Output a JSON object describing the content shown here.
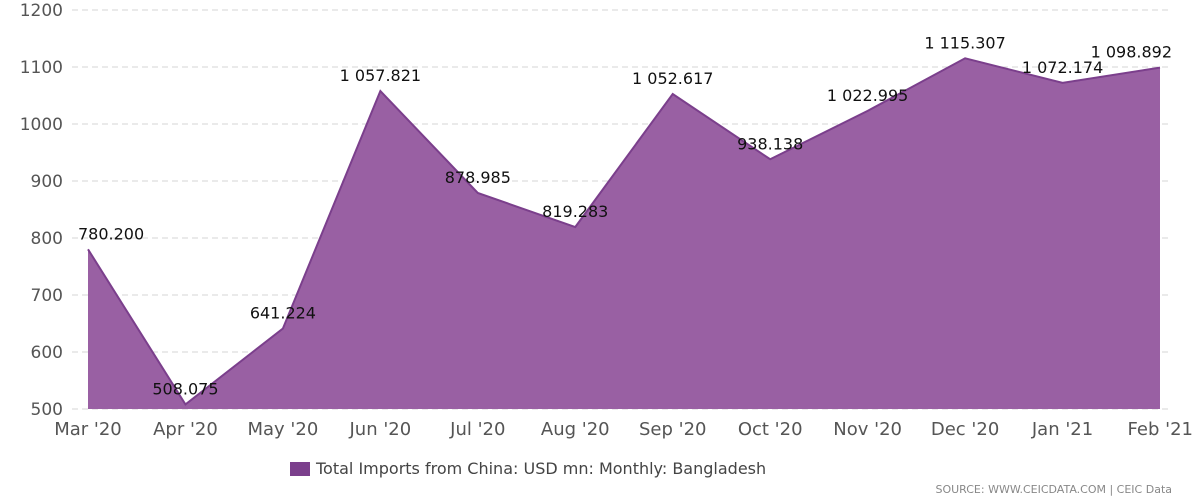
{
  "colors": {
    "area_fill": "#9960a3",
    "area_line": "#7b3f8c",
    "legend_swatch": "#7b3f8c"
  },
  "chart_data": {
    "type": "area",
    "categories": [
      "Mar '20",
      "Apr '20",
      "May '20",
      "Jun '20",
      "Jul '20",
      "Aug '20",
      "Sep '20",
      "Oct '20",
      "Nov '20",
      "Dec '20",
      "Jan '21",
      "Feb '21"
    ],
    "series": [
      {
        "name": "Total Imports from China: USD mn: Monthly: Bangladesh",
        "values": [
          780.2,
          508.075,
          641.224,
          1057.821,
          878.985,
          819.283,
          1052.617,
          938.138,
          1022.995,
          1115.307,
          1072.174,
          1098.892
        ],
        "labels": [
          "780.200",
          "508.075",
          "641.224",
          "1 057.821",
          "878.985",
          "819.283",
          "1 052.617",
          "938.138",
          "1 022.995",
          "1 115.307",
          "1 072.174",
          "1 098.892"
        ]
      }
    ],
    "ylim": [
      500,
      1200
    ],
    "yticks": [
      500,
      600,
      700,
      800,
      900,
      1000,
      1100,
      1200
    ],
    "ytick_labels": [
      "500",
      "600",
      "700",
      "800",
      "900",
      "1000",
      "1100",
      "1200"
    ],
    "grid": true,
    "legend": "bottom"
  },
  "legend": {
    "label": "Total Imports from China: USD mn: Monthly: Bangladesh"
  },
  "source": {
    "text": "SOURCE: WWW.CEICDATA.COM | CEIC Data"
  }
}
